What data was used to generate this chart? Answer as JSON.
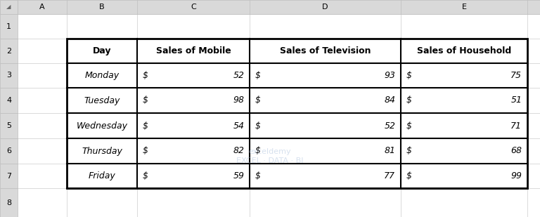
{
  "col_headers": [
    "Day",
    "Sales of Mobile",
    "Sales of Television",
    "Sales of Household"
  ],
  "rows": [
    [
      "Monday",
      "$",
      52,
      "$",
      93,
      "$",
      75
    ],
    [
      "Tuesday",
      "$",
      98,
      "$",
      84,
      "$",
      51
    ],
    [
      "Wednesday",
      "$",
      54,
      "$",
      52,
      "$",
      71
    ],
    [
      "Thursday",
      "$",
      82,
      "$",
      81,
      "$",
      68
    ],
    [
      "Friday",
      "$",
      59,
      "$",
      77,
      "$",
      99
    ]
  ],
  "excel_col_labels": [
    "",
    "A",
    "B",
    "C",
    "D",
    "E"
  ],
  "excel_row_labels": [
    "1",
    "2",
    "3",
    "4",
    "5",
    "6",
    "7",
    "8"
  ],
  "bg_color": "#d9d9d9",
  "cell_bg": "#ffffff",
  "header_bg": "#ffffff",
  "grid_color": "#000000",
  "excel_header_bg": "#d9d9d9",
  "excel_border_color": "#bfbfbf",
  "text_color": "#000000",
  "font_size": 9,
  "header_font_size": 9,
  "watermark_text": "exceldemy\nEXCEL · DATA · BI",
  "watermark_color": "#b0c4de",
  "watermark_alpha": 0.5
}
